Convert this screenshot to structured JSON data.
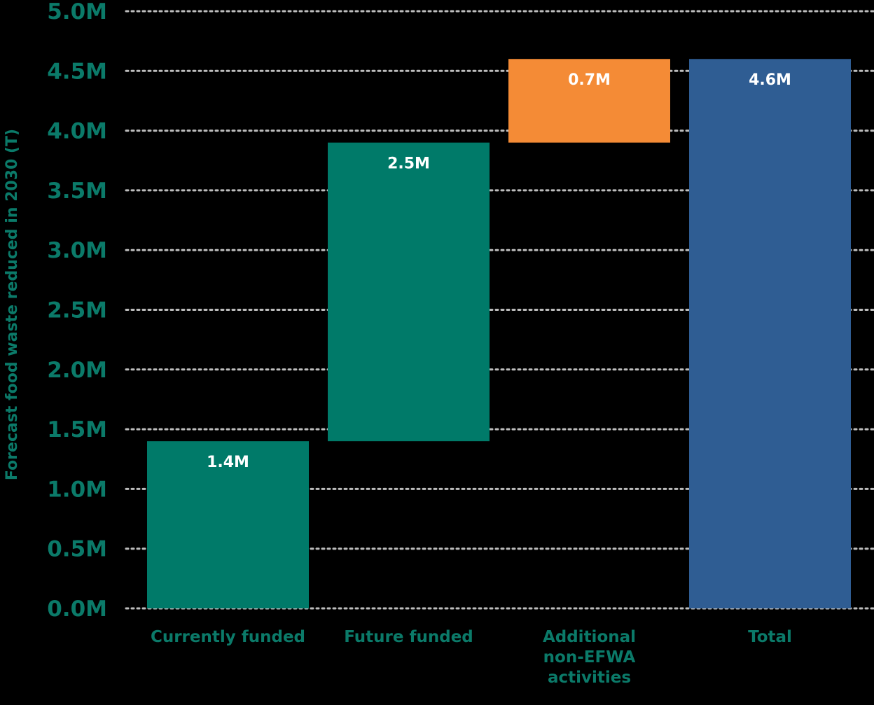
{
  "chart_data": {
    "type": "bar",
    "subtype": "waterfall",
    "ylabel": "Forecast food waste reduced in 2030 (T)",
    "ylim": [
      0,
      5.0
    ],
    "yticks": [
      0.0,
      0.5,
      1.0,
      1.5,
      2.0,
      2.5,
      3.0,
      3.5,
      4.0,
      4.5,
      5.0
    ],
    "ytick_labels": [
      "0.0M",
      "0.5M",
      "1.0M",
      "1.5M",
      "2.0M",
      "2.5M",
      "3.0M",
      "3.5M",
      "4.0M",
      "4.5M",
      "5.0M"
    ],
    "grid": "horizontal-dotted",
    "bars": [
      {
        "category": [
          "Currently funded"
        ],
        "base": 0.0,
        "value": 1.4,
        "label": "1.4M",
        "color": "#007a69"
      },
      {
        "category": [
          "Future funded"
        ],
        "base": 1.4,
        "value": 2.5,
        "label": "2.5M",
        "color": "#007a69"
      },
      {
        "category": [
          "Additional",
          "non-EFWA",
          "activities"
        ],
        "base": 3.9,
        "value": 0.7,
        "label": "0.7M",
        "color": "#f48b36"
      },
      {
        "category": [
          "Total"
        ],
        "base": 0.0,
        "value": 4.6,
        "label": "4.6M",
        "color": "#2f5d93"
      }
    ],
    "text_color": "#0b7a69",
    "grid_color": "#bdbdbd",
    "background": "#000000"
  }
}
